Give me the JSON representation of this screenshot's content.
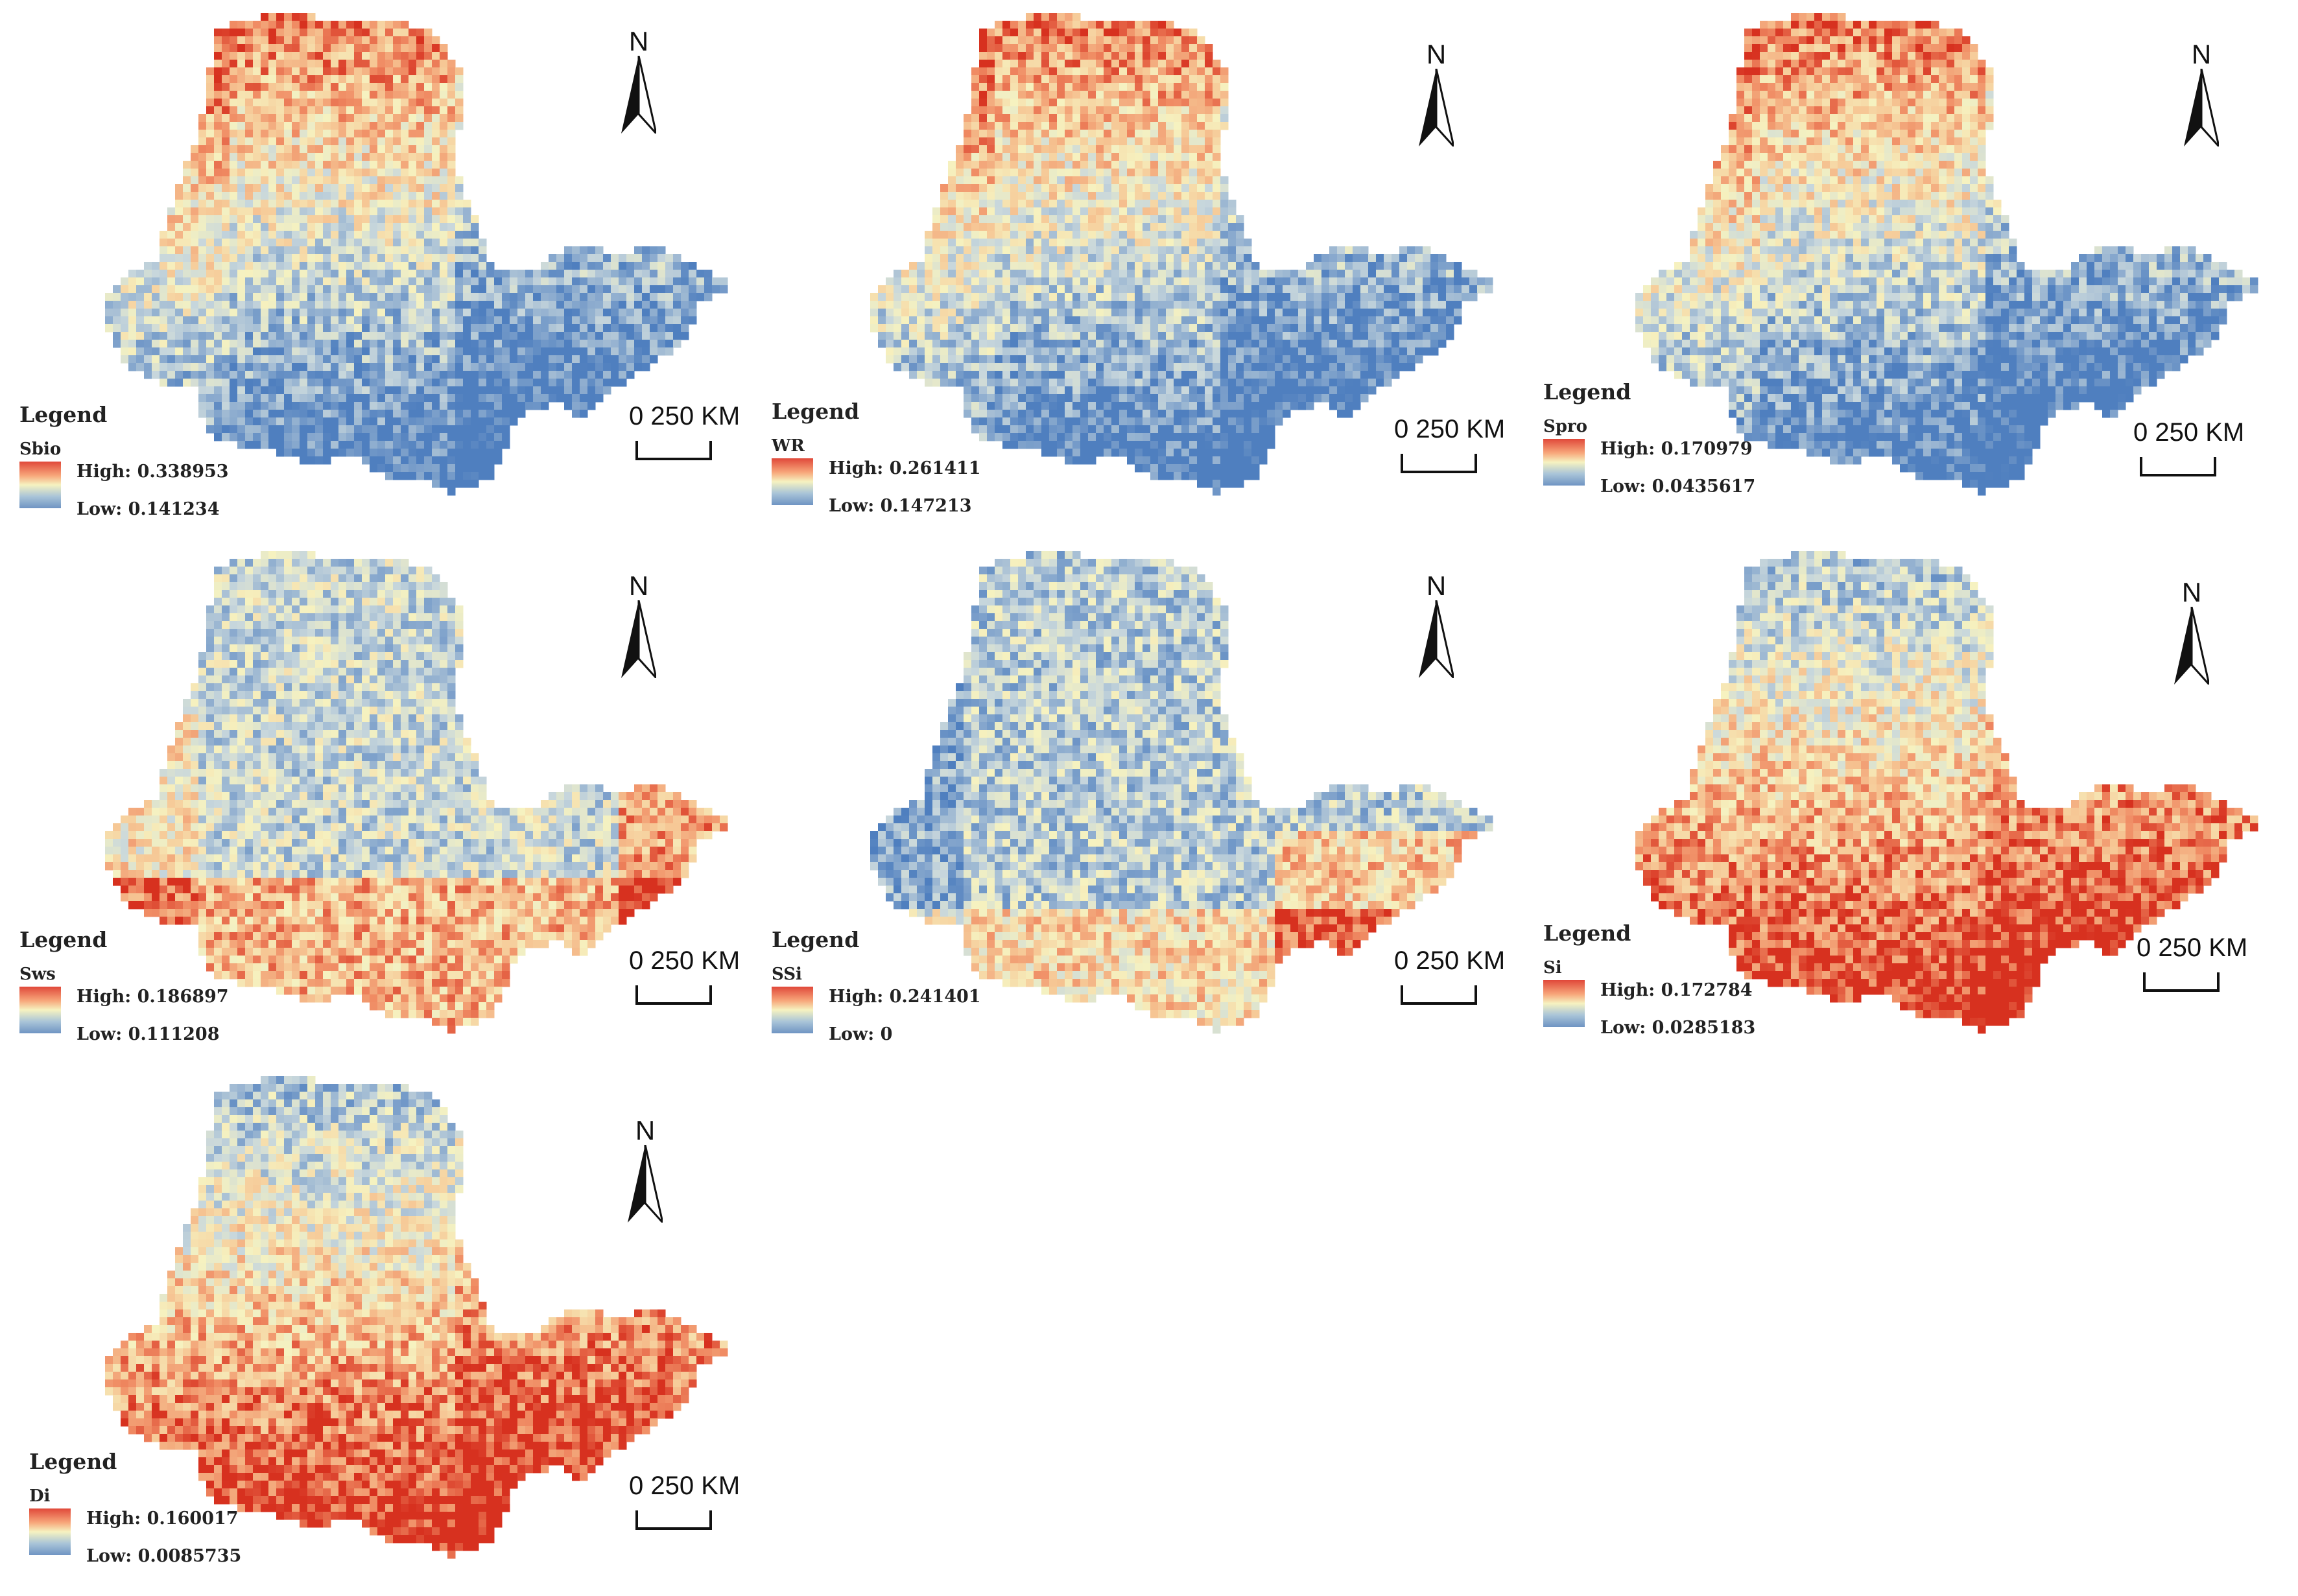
{
  "maps": [
    {
      "id": "sbio",
      "legend_title": "Legend",
      "variable": "Sbio",
      "high": "High: 0.338953",
      "low": "Low: 0.141234",
      "scale": "0   250 KM",
      "north": "N",
      "pattern": "north-high"
    },
    {
      "id": "wr",
      "legend_title": "Legend",
      "variable": "WR",
      "high": "High: 0.261411",
      "low": "Low: 0.147213",
      "scale": "0   250 KM",
      "north": "N",
      "pattern": "north-high"
    },
    {
      "id": "spro",
      "legend_title": "Legend",
      "variable": "Spro",
      "high": "High: 0.170979",
      "low": "Low: 0.0435617",
      "scale": "0   250 KM",
      "north": "N",
      "pattern": "north-high"
    },
    {
      "id": "sws",
      "legend_title": "Legend",
      "variable": "Sws",
      "high": "High: 0.186897",
      "low": "Low: 0.111208",
      "scale": "0   250 KM",
      "north": "N",
      "pattern": "edge-high"
    },
    {
      "id": "ssi",
      "legend_title": "Legend",
      "variable": "SSi",
      "high": "High: 0.241401",
      "low": "Low: 0",
      "scale": "0   250 KM",
      "north": "N",
      "pattern": "southeast-high"
    },
    {
      "id": "si",
      "legend_title": "Legend",
      "variable": "Si",
      "high": "High: 0.172784",
      "low": "Low: 0.0285183",
      "scale": "0   250 KM",
      "north": "N",
      "pattern": "south-high"
    },
    {
      "id": "di",
      "legend_title": "Legend",
      "variable": "Di",
      "high": "High: 0.160017",
      "low": "Low: 0.0085735",
      "scale": "0   250 KM",
      "north": "N",
      "pattern": "south-high"
    }
  ],
  "colors": {
    "high": "#d7301f",
    "mid": "#f6f2c0",
    "low": "#4f7fbf"
  }
}
